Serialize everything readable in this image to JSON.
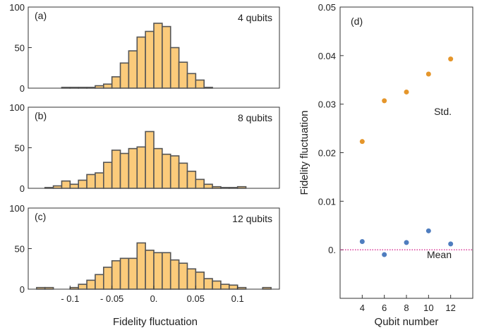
{
  "chart_data": [
    {
      "type": "bar",
      "panel_label": "(a)",
      "annotation": "4 qubits",
      "bin_width": 0.01,
      "bin_centers": [
        -0.105,
        -0.095,
        -0.085,
        -0.075,
        -0.065,
        -0.055,
        -0.045,
        -0.035,
        -0.025,
        -0.015,
        -0.005,
        0.005,
        0.015,
        0.025,
        0.035,
        0.045,
        0.055,
        0.065
      ],
      "values": [
        1,
        1,
        1,
        1,
        3,
        5,
        14,
        31,
        46,
        63,
        70,
        80,
        76,
        50,
        32,
        18,
        10,
        1
      ],
      "ylim": [
        0,
        100
      ],
      "yticks": [
        "0",
        "50",
        "100"
      ],
      "xlim": [
        -0.15,
        0.15
      ],
      "xticks": [],
      "bar_color": "#FBCB7B"
    },
    {
      "type": "bar",
      "panel_label": "(b)",
      "annotation": "8 qubits",
      "bin_width": 0.01,
      "bin_centers": [
        -0.125,
        -0.115,
        -0.105,
        -0.095,
        -0.085,
        -0.075,
        -0.065,
        -0.055,
        -0.045,
        -0.035,
        -0.025,
        -0.015,
        -0.005,
        0.005,
        0.015,
        0.025,
        0.035,
        0.045,
        0.055,
        0.065,
        0.075,
        0.085,
        0.095,
        0.105
      ],
      "values": [
        1,
        3,
        9,
        5,
        10,
        17,
        19,
        32,
        47,
        43,
        49,
        51,
        70,
        49,
        42,
        40,
        31,
        21,
        11,
        5,
        2,
        1,
        1,
        2
      ],
      "ylim": [
        0,
        100
      ],
      "yticks": [
        "0",
        "50",
        "100"
      ],
      "xlim": [
        -0.15,
        0.15
      ],
      "xticks": [],
      "bar_color": "#FBCB7B"
    },
    {
      "type": "bar",
      "panel_label": "(c)",
      "annotation": "12 qubits",
      "bin_width": 0.01,
      "bin_centers": [
        -0.135,
        -0.125,
        -0.095,
        -0.085,
        -0.075,
        -0.065,
        -0.055,
        -0.045,
        -0.035,
        -0.025,
        -0.015,
        -0.005,
        0.005,
        0.015,
        0.025,
        0.035,
        0.045,
        0.055,
        0.065,
        0.075,
        0.085,
        0.095,
        0.105,
        0.135
      ],
      "values": [
        2,
        2,
        2,
        6,
        11,
        18,
        27,
        35,
        38,
        38,
        57,
        48,
        45,
        45,
        36,
        32,
        25,
        21,
        13,
        10,
        6,
        5,
        2,
        2
      ],
      "ylim": [
        0,
        100
      ],
      "yticks": [
        "0",
        "50",
        "100"
      ],
      "xlim": [
        -0.15,
        0.15
      ],
      "xticks": [
        -0.1,
        -0.05,
        0,
        0.05,
        0.1
      ],
      "xticklabels": [
        "- 0.1",
        "- 0.05",
        "0.",
        "0.05",
        "0.1"
      ],
      "bar_color": "#FBCB7B"
    },
    {
      "type": "scatter",
      "panel_label": "(d)",
      "x": [
        4,
        6,
        8,
        10,
        12
      ],
      "series": [
        {
          "name": "Std.",
          "values": [
            0.0223,
            0.0307,
            0.0325,
            0.0362,
            0.0393
          ],
          "color": "#E5962B"
        },
        {
          "name": "Mean",
          "values": [
            0.0017,
            -0.001,
            0.0015,
            0.0039,
            0.0012
          ],
          "color": "#4F7DBF"
        }
      ],
      "reference_line": {
        "y": 0,
        "style": "dotted",
        "color": "#D6278F"
      },
      "xlabel": "Qubit number",
      "ylabel": "Fidelity fluctuation",
      "xlim": [
        2,
        14
      ],
      "ylim": [
        -0.01,
        0.05
      ],
      "xticks": [
        "4",
        "6",
        "8",
        "10",
        "12"
      ],
      "yticks": [
        0,
        0.01,
        0.02,
        0.03,
        0.04,
        0.05
      ],
      "yticklabels": [
        "0.",
        "0.01",
        "0.02",
        "0.03",
        "0.04",
        "0.05"
      ]
    }
  ],
  "shared_xlabel": "Fidelity fluctuation",
  "colors": {
    "bar_edge": "#555555",
    "axis": "#333333"
  }
}
